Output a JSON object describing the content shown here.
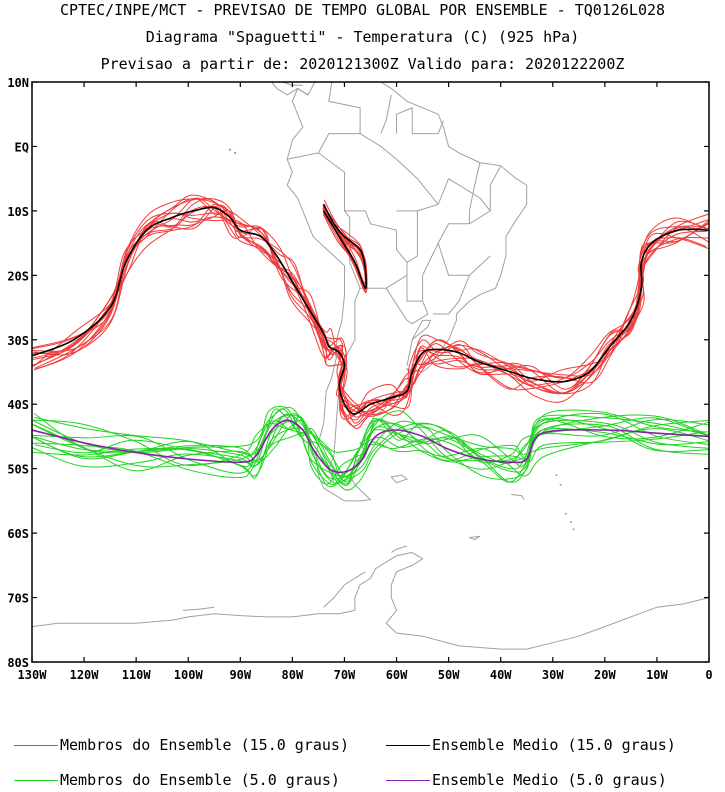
{
  "title": {
    "line1": "CPTEC/INPE/MCT - PREVISAO DE TEMPO GLOBAL POR ENSEMBLE - TQ0126L028",
    "line2": "Diagrama \"Spaguetti\" - Temperatura (C) (925 hPa)",
    "line3": "Previsao a partir de: 2020121300Z  Valido para: 2020122200Z"
  },
  "axes": {
    "lat_labels": [
      "10N",
      "EQ",
      "10S",
      "20S",
      "30S",
      "40S",
      "50S",
      "60S",
      "70S",
      "80S"
    ],
    "lon_labels": [
      "130W",
      "120W",
      "110W",
      "100W",
      "90W",
      "80W",
      "70W",
      "60W",
      "50W",
      "40W",
      "30W",
      "20W",
      "10W",
      "0"
    ]
  },
  "legend": {
    "red_members": "Membros do Ensemble (15.0 graus)",
    "black_mean": "Ensemble Medio (15.0 graus)",
    "green_members": "Membros do Ensemble (5.0 graus)",
    "purple_mean": "Ensemble Medio (5.0 graus)"
  },
  "colors": {
    "red_members": "#f03c3c",
    "black_mean": "#000000",
    "green_members": "#22d322",
    "purple_mean": "#8c1eaa",
    "coastline": "#a0a0a0"
  },
  "map_data": {
    "extent": {
      "lon": [
        -130,
        0
      ],
      "lat": [
        -80,
        10
      ]
    },
    "isotherm_15_mean": [
      [
        -130,
        -32.5
      ],
      [
        -122,
        -30
      ],
      [
        -115,
        -25
      ],
      [
        -112,
        -18
      ],
      [
        -108,
        -13
      ],
      [
        -103,
        -11
      ],
      [
        -99,
        -10
      ],
      [
        -95,
        -9.5
      ],
      [
        -92,
        -11
      ],
      [
        -90,
        -13
      ],
      [
        -86,
        -14
      ],
      [
        -83,
        -17
      ],
      [
        -80,
        -21
      ],
      [
        -77,
        -25
      ],
      [
        -74,
        -29
      ],
      [
        -73,
        -31
      ],
      [
        -71,
        -32
      ],
      [
        -70,
        -34
      ],
      [
        -71,
        -37
      ],
      [
        -70,
        -40
      ],
      [
        -68,
        -41.5
      ],
      [
        -65,
        -40
      ],
      [
        -61,
        -39
      ],
      [
        -58,
        -38
      ],
      [
        -57,
        -35
      ],
      [
        -55,
        -32
      ],
      [
        -52,
        -31.5
      ],
      [
        -48,
        -32
      ],
      [
        -44,
        -33.5
      ],
      [
        -38,
        -35
      ],
      [
        -34,
        -36
      ],
      [
        -28,
        -36.5
      ],
      [
        -23,
        -35
      ],
      [
        -19,
        -31
      ],
      [
        -15,
        -27
      ],
      [
        -13,
        -22
      ],
      [
        -13,
        -18
      ],
      [
        -11,
        -15
      ],
      [
        -6,
        -13
      ],
      [
        0,
        -13
      ]
    ],
    "isotherm_15_mean_andes": [
      [
        -74,
        -9
      ],
      [
        -72,
        -12
      ],
      [
        -70,
        -14
      ],
      [
        -67,
        -16
      ],
      [
        -66,
        -19
      ],
      [
        -66,
        -22
      ],
      [
        -68,
        -18
      ],
      [
        -71,
        -14
      ],
      [
        -74,
        -10
      ]
    ],
    "isotherm_5_mean": [
      [
        -130,
        -44
      ],
      [
        -120,
        -46
      ],
      [
        -110,
        -47.5
      ],
      [
        -100,
        -48.5
      ],
      [
        -90,
        -49
      ],
      [
        -87,
        -48
      ],
      [
        -84,
        -44
      ],
      [
        -81,
        -42.5
      ],
      [
        -78,
        -44
      ],
      [
        -76,
        -47
      ],
      [
        -73,
        -50
      ],
      [
        -70,
        -50.5
      ],
      [
        -67,
        -49
      ],
      [
        -64,
        -45
      ],
      [
        -60,
        -44
      ],
      [
        -55,
        -45
      ],
      [
        -50,
        -47
      ],
      [
        -44,
        -48.5
      ],
      [
        -38,
        -49
      ],
      [
        -35,
        -48.5
      ],
      [
        -32,
        -44.5
      ],
      [
        -20,
        -44
      ],
      [
        -10,
        -44.5
      ],
      [
        0,
        -45
      ]
    ]
  }
}
